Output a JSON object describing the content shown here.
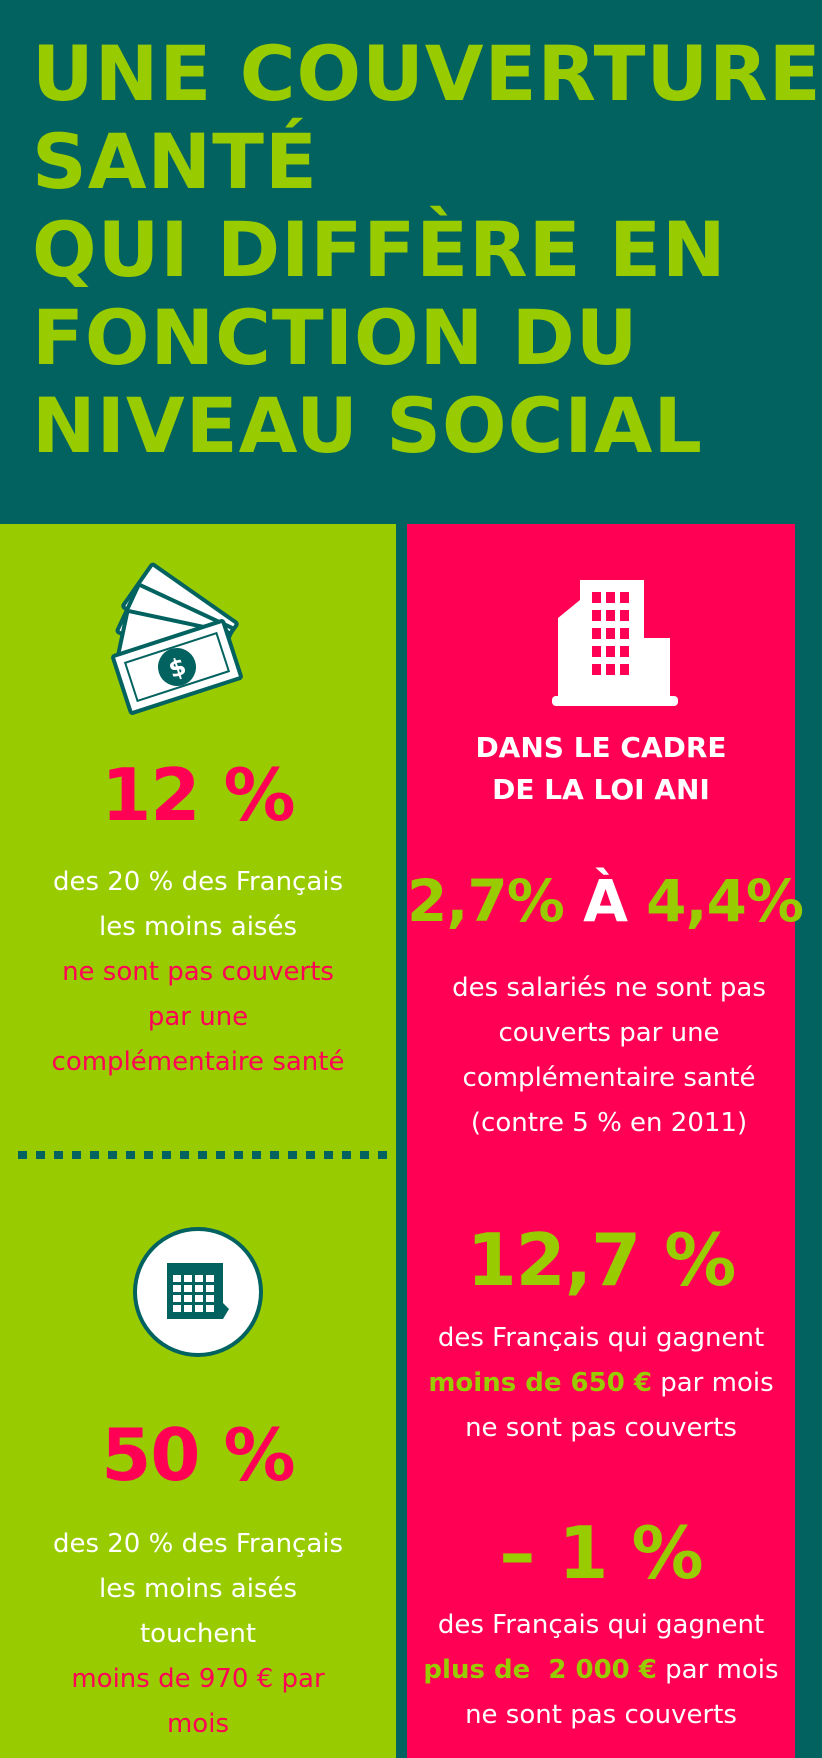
{
  "title": {
    "line1": "UNE COUVERTURE",
    "line2": "SANTÉ",
    "line3": "QUI DIFFÈRE EN",
    "line4": "FONCTION DU",
    "line5": "NIVEAU SOCIAL"
  },
  "left": {
    "stat1": {
      "value": "12 %",
      "line1": "des 20 % des Français",
      "line2": "les moins aisés",
      "line3": "ne sont pas couverts",
      "line4": "par une",
      "line5": "complémentaire santé"
    },
    "stat2": {
      "value": "50 %",
      "line1": "des 20 % des Français",
      "line2": "les moins aisés",
      "line3": "touchent",
      "line4": "moins de 970 € par",
      "line5": "mois"
    }
  },
  "right": {
    "cadre": {
      "line1": "DANS LE CADRE",
      "line2": "DE LA LOI ANI"
    },
    "stat1": {
      "value_a": "2,7%",
      "value_sep": "À",
      "value_b": "4,4%",
      "line1": "des salariés ne sont pas",
      "line2": "couverts par une",
      "line3": "complémentaire santé",
      "line4": "(contre 5 % en 2011)"
    },
    "stat2": {
      "value": "12,7 %",
      "line1": "des Français qui gagnent",
      "line2_highlight": "moins de 650 €",
      "line2_rest": " par mois",
      "line3": "ne sont pas couverts"
    },
    "stat3": {
      "value": "– 1 %",
      "line1": "des Français qui gagnent",
      "line2_highlight": "plus de  2 000 €",
      "line2_rest": " par mois",
      "line3": "ne sont pas couverts"
    }
  },
  "icons": {
    "money": "money-bills-icon",
    "building": "building-icon",
    "calendar": "calendar-icon"
  },
  "colors": {
    "teal": "#02625f",
    "lime": "#99cc00",
    "pink": "#ff0055",
    "white": "#ffffff"
  }
}
